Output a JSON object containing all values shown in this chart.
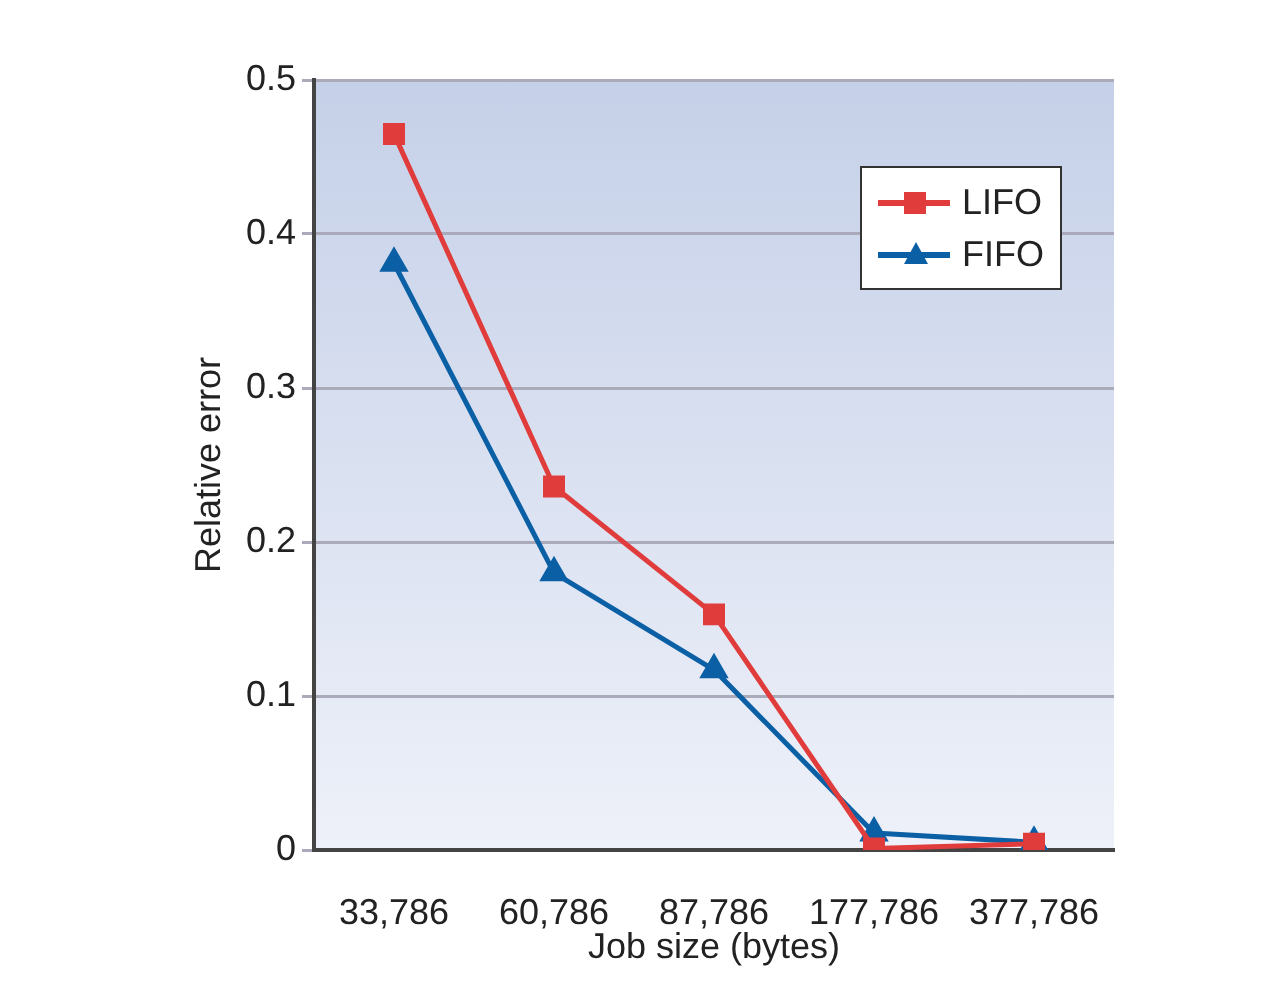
{
  "chart_data": {
    "type": "line",
    "xlabel": "Job size (bytes)",
    "ylabel": "Relative error",
    "categories": [
      "33,786",
      "60,786",
      "87,786",
      "177,786",
      "377,786"
    ],
    "series": [
      {
        "name": "LIFO",
        "color": "#e03c3c",
        "marker": "square",
        "values": [
          0.465,
          0.236,
          0.153,
          0.001,
          0.004
        ]
      },
      {
        "name": "FIFO",
        "color": "#0b5fa5",
        "marker": "triangle",
        "values": [
          0.381,
          0.18,
          0.117,
          0.011,
          0.005
        ]
      }
    ],
    "ylim": [
      0,
      0.5
    ],
    "yticks": [
      0,
      0.1,
      0.2,
      0.3,
      0.4,
      0.5
    ],
    "grid": "y",
    "legend": "top right",
    "line_style": "solid"
  }
}
